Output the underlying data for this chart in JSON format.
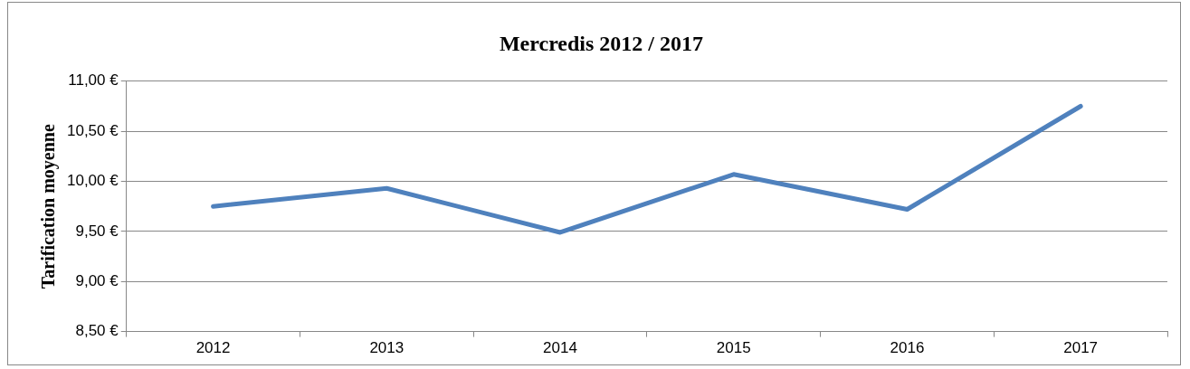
{
  "chart_data": {
    "type": "line",
    "title": "Mercredis 2012 / 2017",
    "ylabel": "Tarification moyenne",
    "categories": [
      "2012",
      "2013",
      "2014",
      "2015",
      "2016",
      "2017"
    ],
    "series": [
      {
        "color": "#4f81bd",
        "values": [
          9.75,
          9.93,
          9.49,
          10.07,
          9.72,
          10.75
        ]
      }
    ],
    "ylim": [
      8.5,
      11
    ],
    "yticks": [
      {
        "value": 8.5,
        "label": "8,50 €"
      },
      {
        "value": 9,
        "label": "9,00 €"
      },
      {
        "value": 9.5,
        "label": "9,50 €"
      },
      {
        "value": 10,
        "label": "10,00 €"
      },
      {
        "value": 10.5,
        "label": "10,50 €"
      },
      {
        "value": 11,
        "label": "11,00 €"
      }
    ],
    "grid": "y",
    "legend": false,
    "marker": "none",
    "line_style": "solid"
  }
}
